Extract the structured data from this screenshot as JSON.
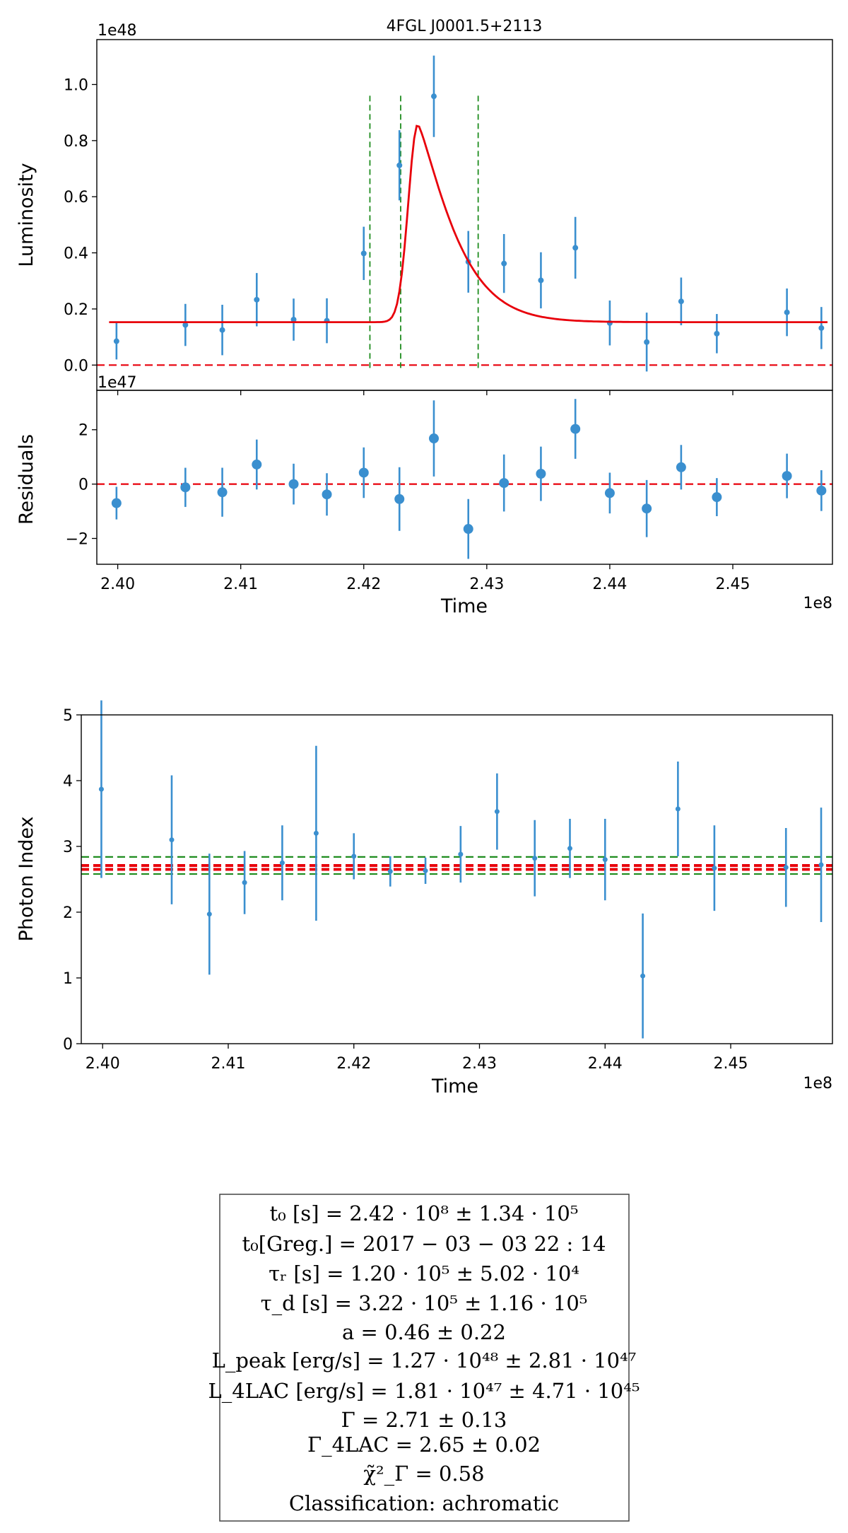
{
  "chart_data": [
    {
      "type": "scatter",
      "title": "4FGL J0001.5+2113",
      "panel": "light curve",
      "xlabel": "",
      "ylabel": "Luminosity",
      "y_offset_label": "1e48",
      "xlim": [
        2.3983,
        2.4581
      ],
      "ylim": [
        -0.09,
        1.16
      ],
      "y_ticks": [
        "0.0",
        "0.2",
        "0.4",
        "0.6",
        "0.8",
        "1.0"
      ],
      "series": [
        {
          "name": "data",
          "color": "#3a8fcf",
          "x": [
            2.3999,
            2.4055,
            2.4085,
            2.4113,
            2.4143,
            2.417,
            2.42,
            2.4229,
            2.4257,
            2.4285,
            2.4314,
            2.4344,
            2.4372,
            2.44,
            2.443,
            2.4458,
            2.4487,
            2.4544,
            2.4572
          ],
          "y": [
            0.085,
            0.143,
            0.125,
            0.233,
            0.162,
            0.158,
            0.398,
            0.712,
            0.958,
            0.368,
            0.362,
            0.302,
            0.418,
            0.15,
            0.082,
            0.227,
            0.112,
            0.188,
            0.132
          ],
          "yerr": [
            0.065,
            0.075,
            0.09,
            0.095,
            0.075,
            0.08,
            0.095,
            0.125,
            0.145,
            0.11,
            0.105,
            0.1,
            0.11,
            0.08,
            0.105,
            0.085,
            0.07,
            0.085,
            0.075
          ]
        },
        {
          "name": "fit",
          "color": "#e8000b",
          "baseline": 0.153,
          "peak_x": 2.4244,
          "peak_y": 0.858,
          "x_start": 2.3993,
          "x_end": 2.4577
        }
      ],
      "hlines": [
        {
          "y": 0.0,
          "color": "#e8000b",
          "style": "dashed"
        }
      ],
      "vlines": [
        {
          "x": 2.4205,
          "color": "#1e8c1e",
          "style": "dashed",
          "ymax": 0.96
        },
        {
          "x": 2.423,
          "color": "#1e8c1e",
          "style": "dashed",
          "ymax": 0.96
        },
        {
          "x": 2.4293,
          "color": "#1e8c1e",
          "style": "dashed",
          "ymax": 0.96
        }
      ]
    },
    {
      "type": "scatter",
      "panel": "residuals",
      "xlabel": "Time",
      "ylabel": "Residuals",
      "y_offset_label": "1e47",
      "x_offset_label": "1e8",
      "xlim": [
        2.3983,
        2.4581
      ],
      "ylim": [
        -2.95,
        3.45
      ],
      "x_ticks": [
        "2.40",
        "2.41",
        "2.42",
        "2.43",
        "2.44",
        "2.45"
      ],
      "y_ticks": [
        "−2",
        "0",
        "2"
      ],
      "series": [
        {
          "name": "residuals",
          "color": "#3a8fcf",
          "x": [
            2.3999,
            2.4055,
            2.4085,
            2.4113,
            2.4143,
            2.417,
            2.42,
            2.4229,
            2.4257,
            2.4285,
            2.4314,
            2.4344,
            2.4372,
            2.44,
            2.443,
            2.4458,
            2.4487,
            2.4544,
            2.4572
          ],
          "y": [
            -0.7,
            -0.12,
            -0.3,
            0.72,
            0.0,
            -0.38,
            0.42,
            -0.55,
            1.68,
            -1.65,
            0.04,
            0.38,
            2.03,
            -0.33,
            -0.9,
            0.62,
            -0.48,
            0.3,
            -0.24
          ],
          "yerr": [
            0.6,
            0.72,
            0.9,
            0.92,
            0.75,
            0.78,
            0.93,
            1.17,
            1.4,
            1.1,
            1.05,
            1.0,
            1.1,
            0.75,
            1.05,
            0.82,
            0.7,
            0.82,
            0.75
          ]
        }
      ],
      "hlines": [
        {
          "y": 0.0,
          "color": "#e8000b",
          "style": "dashed"
        }
      ]
    },
    {
      "type": "scatter",
      "panel": "photon index",
      "xlabel": "Time",
      "ylabel": "Photon Index",
      "x_offset_label": "1e8",
      "xlim": [
        2.3983,
        2.4581
      ],
      "ylim": [
        0,
        5
      ],
      "x_ticks": [
        "2.40",
        "2.41",
        "2.42",
        "2.43",
        "2.44",
        "2.45"
      ],
      "y_ticks": [
        "0",
        "1",
        "2",
        "3",
        "4",
        "5"
      ],
      "series": [
        {
          "name": "photon index",
          "color": "#3a8fcf",
          "x": [
            2.3999,
            2.4055,
            2.4085,
            2.4113,
            2.4143,
            2.417,
            2.42,
            2.4229,
            2.4257,
            2.4285,
            2.4314,
            2.4344,
            2.4372,
            2.44,
            2.443,
            2.4458,
            2.4487,
            2.4544,
            2.4572
          ],
          "y": [
            3.87,
            3.1,
            1.97,
            2.45,
            2.75,
            3.2,
            2.85,
            2.62,
            2.63,
            2.88,
            3.53,
            2.82,
            2.97,
            2.8,
            1.03,
            3.57,
            2.67,
            2.68,
            2.72
          ],
          "yerr": [
            1.35,
            0.98,
            0.92,
            0.48,
            0.57,
            1.33,
            0.35,
            0.23,
            0.2,
            0.43,
            0.58,
            0.58,
            0.45,
            0.62,
            0.95,
            0.72,
            0.65,
            0.6,
            0.87
          ]
        }
      ],
      "hlines": [
        {
          "y": 2.84,
          "color": "#1e8c1e",
          "style": "dashed"
        },
        {
          "y": 2.58,
          "color": "#1e8c1e",
          "style": "dashed"
        },
        {
          "y": 2.71,
          "color": "#e8000b",
          "style": "dashed"
        },
        {
          "y": 2.65,
          "color": "#e8000b",
          "style": "dashed"
        }
      ]
    }
  ],
  "results_box": {
    "lines": [
      "t₀ [s] = 2.42 · 10⁸  ±  1.34 · 10⁵",
      "t₀[Greg.] = 2017 − 03 − 03 22 : 14",
      "τᵣ [s] = 1.20 · 10⁵  ±  5.02 · 10⁴",
      "τ_d [s] = 3.22 · 10⁵  ±  1.16 · 10⁵",
      "a = 0.46 ±  0.22",
      "L_peak [erg/s] = 1.27 · 10⁴⁸  ±  2.81 · 10⁴⁷",
      "L_4LAC [erg/s] = 1.81 · 10⁴⁷  ±  4.71 · 10⁴⁵",
      "Γ = 2.71 ± 0.13",
      "Γ_4LAC = 2.65 ± 0.02",
      "χ̃²_Γ = 0.58",
      "Classification: achromatic"
    ]
  }
}
